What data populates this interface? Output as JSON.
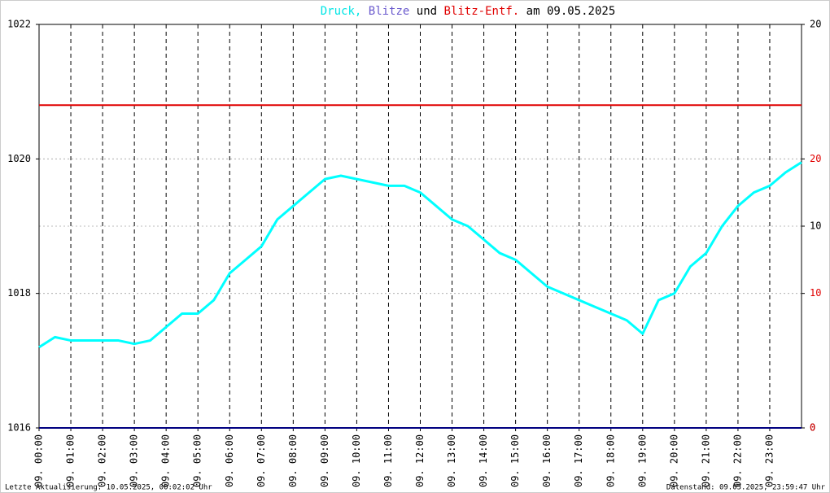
{
  "chart_data": {
    "type": "line",
    "title_parts": [
      {
        "text": "Druck,",
        "color": "#00e5e5"
      },
      {
        "text": "Blitze",
        "color": "#6a5acd"
      },
      {
        "text": "und",
        "color": "#000000"
      },
      {
        "text": "Blitz-Entf.",
        "color": "#e00000"
      },
      {
        "text": "am 09.05.2025",
        "color": "#000000"
      }
    ],
    "xlim": [
      0,
      24
    ],
    "xticks": [
      {
        "value": 0,
        "label": "09. 00:00"
      },
      {
        "value": 1,
        "label": "09. 01:00"
      },
      {
        "value": 2,
        "label": "09. 02:00"
      },
      {
        "value": 3,
        "label": "09. 03:00"
      },
      {
        "value": 4,
        "label": "09. 04:00"
      },
      {
        "value": 5,
        "label": "09. 05:00"
      },
      {
        "value": 6,
        "label": "09. 06:00"
      },
      {
        "value": 7,
        "label": "09. 07:00"
      },
      {
        "value": 8,
        "label": "09. 08:00"
      },
      {
        "value": 9,
        "label": "09. 09:00"
      },
      {
        "value": 10,
        "label": "09. 10:00"
      },
      {
        "value": 11,
        "label": "09. 11:00"
      },
      {
        "value": 12,
        "label": "09. 12:00"
      },
      {
        "value": 13,
        "label": "09. 13:00"
      },
      {
        "value": 14,
        "label": "09. 14:00"
      },
      {
        "value": 15,
        "label": "09. 15:00"
      },
      {
        "value": 16,
        "label": "09. 16:00"
      },
      {
        "value": 17,
        "label": "09. 17:00"
      },
      {
        "value": 18,
        "label": "09. 18:00"
      },
      {
        "value": 19,
        "label": "09. 19:00"
      },
      {
        "value": 20,
        "label": "09. 20:00"
      },
      {
        "value": 21,
        "label": "09. 21:00"
      },
      {
        "value": 22,
        "label": "09. 22:00"
      },
      {
        "value": 23,
        "label": "09. 23:00"
      }
    ],
    "ylim": [
      1016,
      1022
    ],
    "yticks": [
      1016,
      1018,
      1020,
      1022
    ],
    "y2lim": [
      0,
      20
    ],
    "y2ticks": [
      0,
      10,
      20
    ],
    "y2color": "#000000",
    "y3lim": [
      0,
      30
    ],
    "y3ticks": [
      0,
      10,
      20
    ],
    "y3color": "#e00000",
    "grid": true,
    "series": [
      {
        "name": "Druck",
        "color": "#00ffff",
        "axis": "y",
        "x": [
          0,
          0.5,
          1,
          1.5,
          2,
          2.5,
          3,
          3.5,
          4,
          4.5,
          5,
          5.5,
          6,
          6.5,
          7,
          7.5,
          8,
          8.5,
          9,
          9.5,
          10,
          10.5,
          11,
          11.5,
          12,
          12.5,
          13,
          13.5,
          14,
          14.5,
          15,
          15.5,
          16,
          16.5,
          17,
          17.5,
          18,
          18.5,
          19,
          19.5,
          20,
          20.5,
          21,
          21.5,
          22,
          22.5,
          23,
          23.5,
          24
        ],
        "values": [
          1017.2,
          1017.35,
          1017.3,
          1017.3,
          1017.3,
          1017.3,
          1017.25,
          1017.3,
          1017.5,
          1017.7,
          1017.7,
          1017.9,
          1018.3,
          1018.5,
          1018.7,
          1019.1,
          1019.3,
          1019.5,
          1019.7,
          1019.75,
          1019.7,
          1019.65,
          1019.6,
          1019.6,
          1019.5,
          1019.3,
          1019.1,
          1019.0,
          1018.8,
          1018.6,
          1018.5,
          1018.3,
          1018.1,
          1018.0,
          1017.9,
          1017.8,
          1017.7,
          1017.6,
          1017.4,
          1017.9,
          1018.0,
          1018.4,
          1018.6,
          1019.0,
          1019.3,
          1019.5,
          1019.6,
          1019.8,
          1019.95
        ]
      },
      {
        "name": "Blitze",
        "color": "#000080",
        "axis": "y2",
        "x": [
          0,
          24
        ],
        "values": [
          0,
          0
        ]
      },
      {
        "name": "Blitz-Entf.",
        "color": "#e00000",
        "axis": "y3",
        "x": [
          0,
          24
        ],
        "values": [
          24,
          24
        ]
      }
    ],
    "footer_left": "Letzte Aktualisierung: 10.05.2025, 00:02:02 Uhr",
    "footer_right": "Datenstand: 09.05.2025, 23:59:47 Uhr"
  }
}
